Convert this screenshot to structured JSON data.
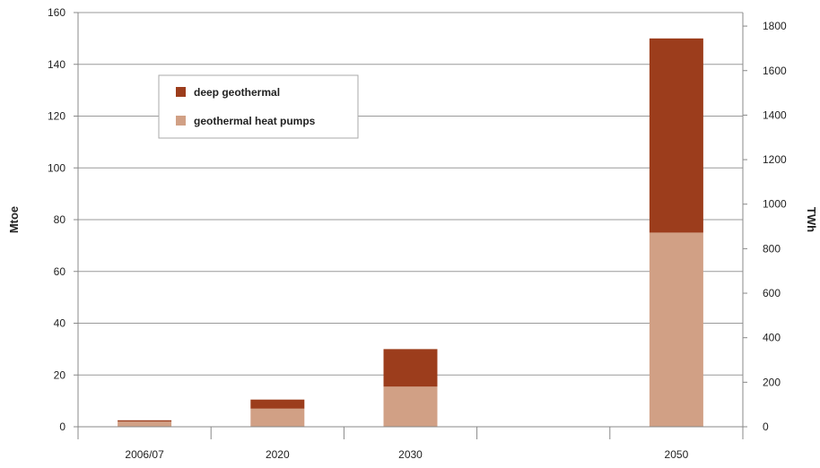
{
  "chart_data": {
    "type": "bar",
    "stacked": true,
    "categories": [
      "2006/07",
      "2020",
      "2030",
      "",
      "2050"
    ],
    "series": [
      {
        "name": "geothermal heat pumps",
        "values": [
          2,
          7,
          15.5,
          null,
          75
        ],
        "color": "#d1a085"
      },
      {
        "name": "deep geothermal",
        "values": [
          0.5,
          3.5,
          14.5,
          null,
          75
        ],
        "color": "#9c3d1c"
      }
    ],
    "ylabel": "Mtoe",
    "ylim": [
      0,
      160
    ],
    "yticks": [
      "0",
      "20",
      "40",
      "60",
      "80",
      "100",
      "120",
      "140",
      "160"
    ],
    "y2label": "TWh",
    "y2lim": [
      0,
      1860.8
    ],
    "y2ticks": [
      "0",
      "200",
      "400",
      "600",
      "800",
      "1000",
      "1200",
      "1400",
      "1600",
      "1800"
    ],
    "grid": true,
    "legend_position": "top-left"
  }
}
